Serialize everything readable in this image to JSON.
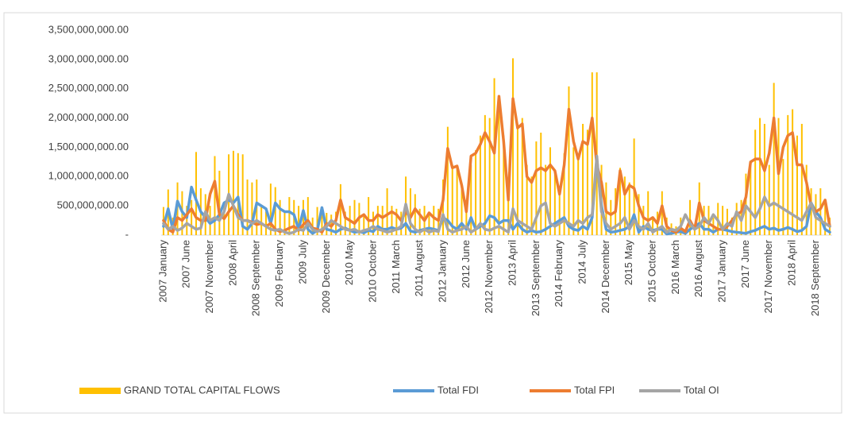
{
  "chart_data": {
    "type": "combo",
    "categories": [
      "2007 January",
      null,
      null,
      null,
      null,
      "2007 June",
      null,
      null,
      null,
      null,
      "2007 November",
      null,
      null,
      null,
      null,
      "2008 April",
      null,
      null,
      null,
      null,
      "2008 September",
      null,
      null,
      null,
      null,
      "2009 February",
      null,
      null,
      null,
      null,
      "2009 July",
      null,
      null,
      null,
      null,
      "2009 December",
      null,
      null,
      null,
      null,
      "2010 May",
      null,
      null,
      null,
      null,
      "2010 October",
      null,
      null,
      null,
      null,
      "2011 March",
      null,
      null,
      null,
      null,
      "2011 August",
      null,
      null,
      null,
      null,
      "2012 January",
      null,
      null,
      null,
      null,
      "2012 June",
      null,
      null,
      null,
      null,
      "2012 November",
      null,
      null,
      null,
      null,
      "2013 April",
      null,
      null,
      null,
      null,
      "2013 September",
      null,
      null,
      null,
      null,
      "2014 February",
      null,
      null,
      null,
      null,
      "2014 July",
      null,
      null,
      null,
      null,
      "2014 December",
      null,
      null,
      null,
      null,
      "2015 May",
      null,
      null,
      null,
      null,
      "2015 October",
      null,
      null,
      null,
      null,
      "2016 March",
      null,
      null,
      null,
      null,
      "2016 August",
      null,
      null,
      null,
      null,
      "2017 January",
      null,
      null,
      null,
      null,
      "2017 June",
      null,
      null,
      null,
      null,
      "2017 November",
      null,
      null,
      null,
      null,
      "2018 April",
      null,
      null,
      null,
      null,
      "2018 September",
      null,
      null,
      null
    ],
    "series": [
      {
        "name": "GRAND TOTAL CAPITAL FLOWS",
        "type": "bar",
        "color": "#FFC000",
        "values": [
          480000000,
          780000000,
          300000000,
          900000000,
          750000000,
          500000000,
          600000000,
          1420000000,
          800000000,
          700000000,
          500000000,
          1350000000,
          1100000000,
          500000000,
          1380000000,
          1440000000,
          1400000000,
          1380000000,
          950000000,
          900000000,
          950000000,
          500000000,
          400000000,
          880000000,
          820000000,
          600000000,
          400000000,
          650000000,
          600000000,
          500000000,
          600000000,
          650000000,
          300000000,
          480000000,
          420000000,
          380000000,
          350000000,
          400000000,
          870000000,
          400000000,
          500000000,
          600000000,
          550000000,
          350000000,
          650000000,
          400000000,
          500000000,
          500000000,
          800000000,
          500000000,
          450000000,
          400000000,
          1000000000,
          800000000,
          700000000,
          450000000,
          500000000,
          400000000,
          500000000,
          450000000,
          950000000,
          1850000000,
          1200000000,
          1200000000,
          800000000,
          600000000,
          1200000000,
          1450000000,
          1700000000,
          2050000000,
          2000000000,
          2680000000,
          2250000000,
          1700000000,
          800000000,
          3020000000,
          1900000000,
          2000000000,
          1200000000,
          1000000000,
          1600000000,
          1750000000,
          1200000000,
          1500000000,
          1100000000,
          800000000,
          1400000000,
          2540000000,
          1500000000,
          1300000000,
          1900000000,
          1800000000,
          2780000000,
          2780000000,
          1200000000,
          900000000,
          600000000,
          800000000,
          1150000000,
          1000000000,
          900000000,
          1650000000,
          700000000,
          500000000,
          750000000,
          300000000,
          400000000,
          750000000,
          300000000,
          200000000,
          150000000,
          300000000,
          100000000,
          600000000,
          150000000,
          900000000,
          500000000,
          500000000,
          300000000,
          550000000,
          500000000,
          450000000,
          300000000,
          550000000,
          600000000,
          1050000000,
          1200000000,
          1800000000,
          2000000000,
          1900000000,
          1200000000,
          2600000000,
          2000000000,
          1300000000,
          2050000000,
          2150000000,
          1700000000,
          1900000000,
          1200000000,
          800000000,
          700000000,
          800000000,
          600000000,
          300000000
        ]
      },
      {
        "name": "Total FDI",
        "type": "line",
        "color": "#5B9BD5",
        "values": [
          150000000,
          450000000,
          100000000,
          580000000,
          400000000,
          300000000,
          820000000,
          600000000,
          400000000,
          300000000,
          200000000,
          250000000,
          350000000,
          550000000,
          600000000,
          550000000,
          650000000,
          150000000,
          100000000,
          200000000,
          550000000,
          500000000,
          450000000,
          200000000,
          550000000,
          450000000,
          400000000,
          400000000,
          350000000,
          100000000,
          420000000,
          100000000,
          30000000,
          80000000,
          470000000,
          100000000,
          80000000,
          50000000,
          100000000,
          120000000,
          80000000,
          50000000,
          60000000,
          40000000,
          80000000,
          60000000,
          150000000,
          100000000,
          100000000,
          130000000,
          100000000,
          120000000,
          200000000,
          70000000,
          50000000,
          80000000,
          100000000,
          120000000,
          100000000,
          80000000,
          300000000,
          250000000,
          150000000,
          100000000,
          200000000,
          100000000,
          300000000,
          100000000,
          150000000,
          200000000,
          330000000,
          300000000,
          200000000,
          250000000,
          250000000,
          100000000,
          200000000,
          100000000,
          50000000,
          80000000,
          50000000,
          60000000,
          100000000,
          150000000,
          200000000,
          250000000,
          300000000,
          150000000,
          100000000,
          80000000,
          150000000,
          100000000,
          300000000,
          1300000000,
          500000000,
          100000000,
          50000000,
          60000000,
          80000000,
          100000000,
          150000000,
          350000000,
          50000000,
          150000000,
          100000000,
          80000000,
          100000000,
          100000000,
          20000000,
          30000000,
          50000000,
          60000000,
          30000000,
          100000000,
          150000000,
          200000000,
          100000000,
          100000000,
          50000000,
          100000000,
          100000000,
          80000000,
          60000000,
          50000000,
          40000000,
          30000000,
          60000000,
          80000000,
          120000000,
          150000000,
          100000000,
          120000000,
          80000000,
          100000000,
          130000000,
          100000000,
          60000000,
          80000000,
          150000000,
          550000000,
          400000000,
          300000000,
          100000000,
          50000000
        ]
      },
      {
        "name": "Total FPI",
        "type": "line",
        "color": "#ED7D31",
        "values": [
          250000000,
          100000000,
          50000000,
          300000000,
          250000000,
          350000000,
          450000000,
          300000000,
          250000000,
          250000000,
          700000000,
          920000000,
          350000000,
          280000000,
          400000000,
          500000000,
          350000000,
          250000000,
          250000000,
          220000000,
          180000000,
          200000000,
          150000000,
          200000000,
          100000000,
          60000000,
          80000000,
          120000000,
          150000000,
          80000000,
          180000000,
          250000000,
          120000000,
          100000000,
          50000000,
          200000000,
          150000000,
          250000000,
          600000000,
          300000000,
          250000000,
          200000000,
          300000000,
          350000000,
          250000000,
          250000000,
          350000000,
          300000000,
          350000000,
          400000000,
          350000000,
          250000000,
          400000000,
          300000000,
          450000000,
          350000000,
          250000000,
          380000000,
          300000000,
          250000000,
          600000000,
          1480000000,
          1150000000,
          1180000000,
          850000000,
          400000000,
          1350000000,
          1400000000,
          1550000000,
          1750000000,
          1600000000,
          1400000000,
          2370000000,
          1600000000,
          600000000,
          2330000000,
          1830000000,
          1900000000,
          1000000000,
          900000000,
          1100000000,
          1150000000,
          1100000000,
          1200000000,
          1100000000,
          700000000,
          1200000000,
          2150000000,
          1600000000,
          1300000000,
          1600000000,
          1550000000,
          2000000000,
          1200000000,
          900000000,
          400000000,
          350000000,
          400000000,
          1100000000,
          700000000,
          850000000,
          800000000,
          500000000,
          300000000,
          250000000,
          300000000,
          200000000,
          500000000,
          150000000,
          80000000,
          50000000,
          120000000,
          60000000,
          250000000,
          100000000,
          550000000,
          250000000,
          200000000,
          150000000,
          100000000,
          100000000,
          150000000,
          250000000,
          350000000,
          400000000,
          650000000,
          1250000000,
          1300000000,
          1300000000,
          1100000000,
          1400000000,
          2000000000,
          1050000000,
          1500000000,
          1700000000,
          1750000000,
          1200000000,
          1200000000,
          900000000,
          500000000,
          400000000,
          450000000,
          600000000,
          150000000
        ]
      },
      {
        "name": "Total OI",
        "type": "line",
        "color": "#A5A5A5",
        "values": [
          200000000,
          100000000,
          150000000,
          80000000,
          120000000,
          200000000,
          150000000,
          100000000,
          120000000,
          400000000,
          250000000,
          300000000,
          250000000,
          400000000,
          700000000,
          500000000,
          300000000,
          250000000,
          250000000,
          200000000,
          250000000,
          200000000,
          150000000,
          100000000,
          80000000,
          100000000,
          50000000,
          30000000,
          50000000,
          100000000,
          80000000,
          200000000,
          100000000,
          60000000,
          100000000,
          150000000,
          250000000,
          200000000,
          150000000,
          100000000,
          80000000,
          100000000,
          50000000,
          80000000,
          100000000,
          150000000,
          100000000,
          80000000,
          50000000,
          70000000,
          100000000,
          150000000,
          530000000,
          200000000,
          100000000,
          50000000,
          100000000,
          50000000,
          80000000,
          60000000,
          350000000,
          100000000,
          50000000,
          80000000,
          100000000,
          150000000,
          50000000,
          100000000,
          200000000,
          100000000,
          80000000,
          120000000,
          150000000,
          100000000,
          50000000,
          450000000,
          250000000,
          200000000,
          150000000,
          100000000,
          300000000,
          500000000,
          550000000,
          200000000,
          150000000,
          200000000,
          250000000,
          200000000,
          150000000,
          250000000,
          200000000,
          300000000,
          350000000,
          1350000000,
          400000000,
          200000000,
          100000000,
          150000000,
          200000000,
          300000000,
          100000000,
          250000000,
          150000000,
          100000000,
          200000000,
          50000000,
          100000000,
          150000000,
          50000000,
          100000000,
          80000000,
          150000000,
          350000000,
          200000000,
          100000000,
          150000000,
          300000000,
          200000000,
          350000000,
          250000000,
          100000000,
          200000000,
          150000000,
          400000000,
          250000000,
          500000000,
          400000000,
          300000000,
          450000000,
          650000000,
          500000000,
          550000000,
          500000000,
          450000000,
          400000000,
          350000000,
          300000000,
          250000000,
          400000000,
          550000000,
          300000000,
          250000000,
          200000000,
          150000000
        ]
      }
    ],
    "ylim": [
      0,
      3500000000
    ],
    "yticks": [
      {
        "value": 0,
        "label": "-"
      },
      {
        "value": 500000000,
        "label": "500,000,000.00"
      },
      {
        "value": 1000000000,
        "label": "1,000,000,000.00"
      },
      {
        "value": 1500000000,
        "label": "1,500,000,000.00"
      },
      {
        "value": 2000000000,
        "label": "2,000,000,000.00"
      },
      {
        "value": 2500000000,
        "label": "2,500,000,000.00"
      },
      {
        "value": 3000000000,
        "label": "3,000,000,000.00"
      },
      {
        "value": 3500000000,
        "label": "3,500,000,000.00"
      }
    ],
    "grid": false,
    "legend": "bottom"
  }
}
